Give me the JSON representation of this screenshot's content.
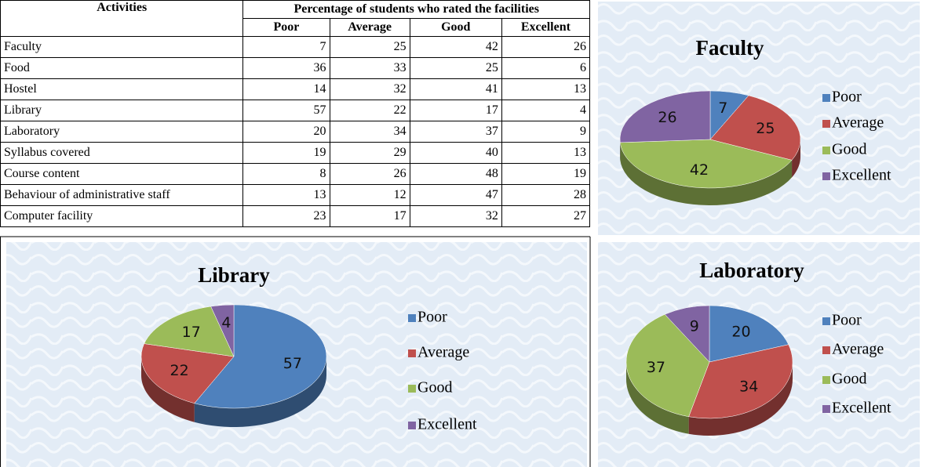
{
  "table": {
    "header": [
      "Activities",
      "Percentage of students who rated the facilities"
    ],
    "columns": [
      "Poor",
      "Average",
      "Good",
      "Excellent"
    ],
    "rows": [
      {
        "label": "Faculty",
        "values": [
          7,
          25,
          42,
          26
        ]
      },
      {
        "label": "Food",
        "values": [
          36,
          33,
          25,
          6
        ]
      },
      {
        "label": "Hostel",
        "values": [
          14,
          32,
          41,
          13
        ]
      },
      {
        "label": "Library",
        "values": [
          57,
          22,
          17,
          4
        ]
      },
      {
        "label": "Laboratory",
        "values": [
          20,
          34,
          37,
          9
        ]
      },
      {
        "label": "Syllabus covered",
        "values": [
          19,
          29,
          40,
          13
        ]
      },
      {
        "label": "Course content",
        "values": [
          8,
          26,
          48,
          19
        ]
      },
      {
        "label": "Behaviour of administrative staff",
        "values": [
          13,
          12,
          47,
          28
        ]
      },
      {
        "label": "Computer facility",
        "values": [
          23,
          17,
          32,
          27
        ]
      }
    ]
  },
  "chart_data": [
    {
      "type": "pie",
      "title": "Faculty",
      "categories": [
        "Poor",
        "Average",
        "Good",
        "Excellent"
      ],
      "values": [
        7,
        25,
        42,
        26
      ],
      "colors": [
        "#4f81bd",
        "#c0504d",
        "#9bbb59",
        "#8064a2"
      ]
    },
    {
      "type": "pie",
      "title": "Library",
      "categories": [
        "Poor",
        "Average",
        "Good",
        "Excellent"
      ],
      "values": [
        57,
        22,
        17,
        4
      ],
      "colors": [
        "#4f81bd",
        "#c0504d",
        "#9bbb59",
        "#8064a2"
      ]
    },
    {
      "type": "pie",
      "title": "Laboratory",
      "categories": [
        "Poor",
        "Average",
        "Good",
        "Excellent"
      ],
      "values": [
        20,
        34,
        37,
        9
      ],
      "colors": [
        "#4f81bd",
        "#c0504d",
        "#9bbb59",
        "#8064a2"
      ]
    }
  ]
}
